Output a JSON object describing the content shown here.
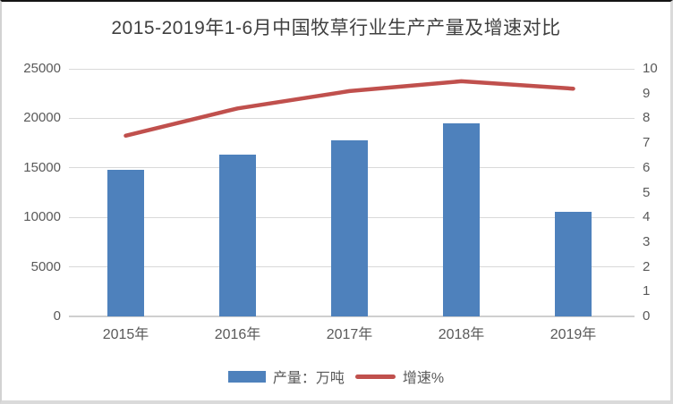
{
  "chart_data": {
    "type": "combo",
    "title": "2015-2019年1-6月中国牧草行业生产产量及增速对比",
    "categories": [
      "2015年",
      "2016年",
      "2017年",
      "2018年",
      "2019年"
    ],
    "series": [
      {
        "name": "产量：万吨",
        "kind": "bar",
        "axis": "left",
        "color": "#4E81BC",
        "values": [
          14760,
          16360,
          17770,
          19490,
          10600
        ]
      },
      {
        "name": "增速%",
        "kind": "line",
        "axis": "right",
        "color": "#C0504D",
        "values": [
          7.3,
          8.4,
          9.1,
          9.5,
          9.2
        ]
      }
    ],
    "y_axis_left": {
      "min": 0,
      "max": 25000,
      "ticks": [
        0,
        5000,
        10000,
        15000,
        20000,
        25000
      ]
    },
    "y_axis_right": {
      "min": 0,
      "max": 10,
      "ticks": [
        0,
        1,
        2,
        3,
        4,
        5,
        6,
        7,
        8,
        9,
        10
      ]
    },
    "grid": "horizontal",
    "legend_position": "bottom"
  },
  "colors": {
    "background": "#ffffff",
    "title_text": "#404040",
    "axis_text": "#595959",
    "gridline": "#d9d9d9",
    "axis_line": "#cfcfcf",
    "bar": "#4E81BC",
    "line": "#C0504D"
  }
}
